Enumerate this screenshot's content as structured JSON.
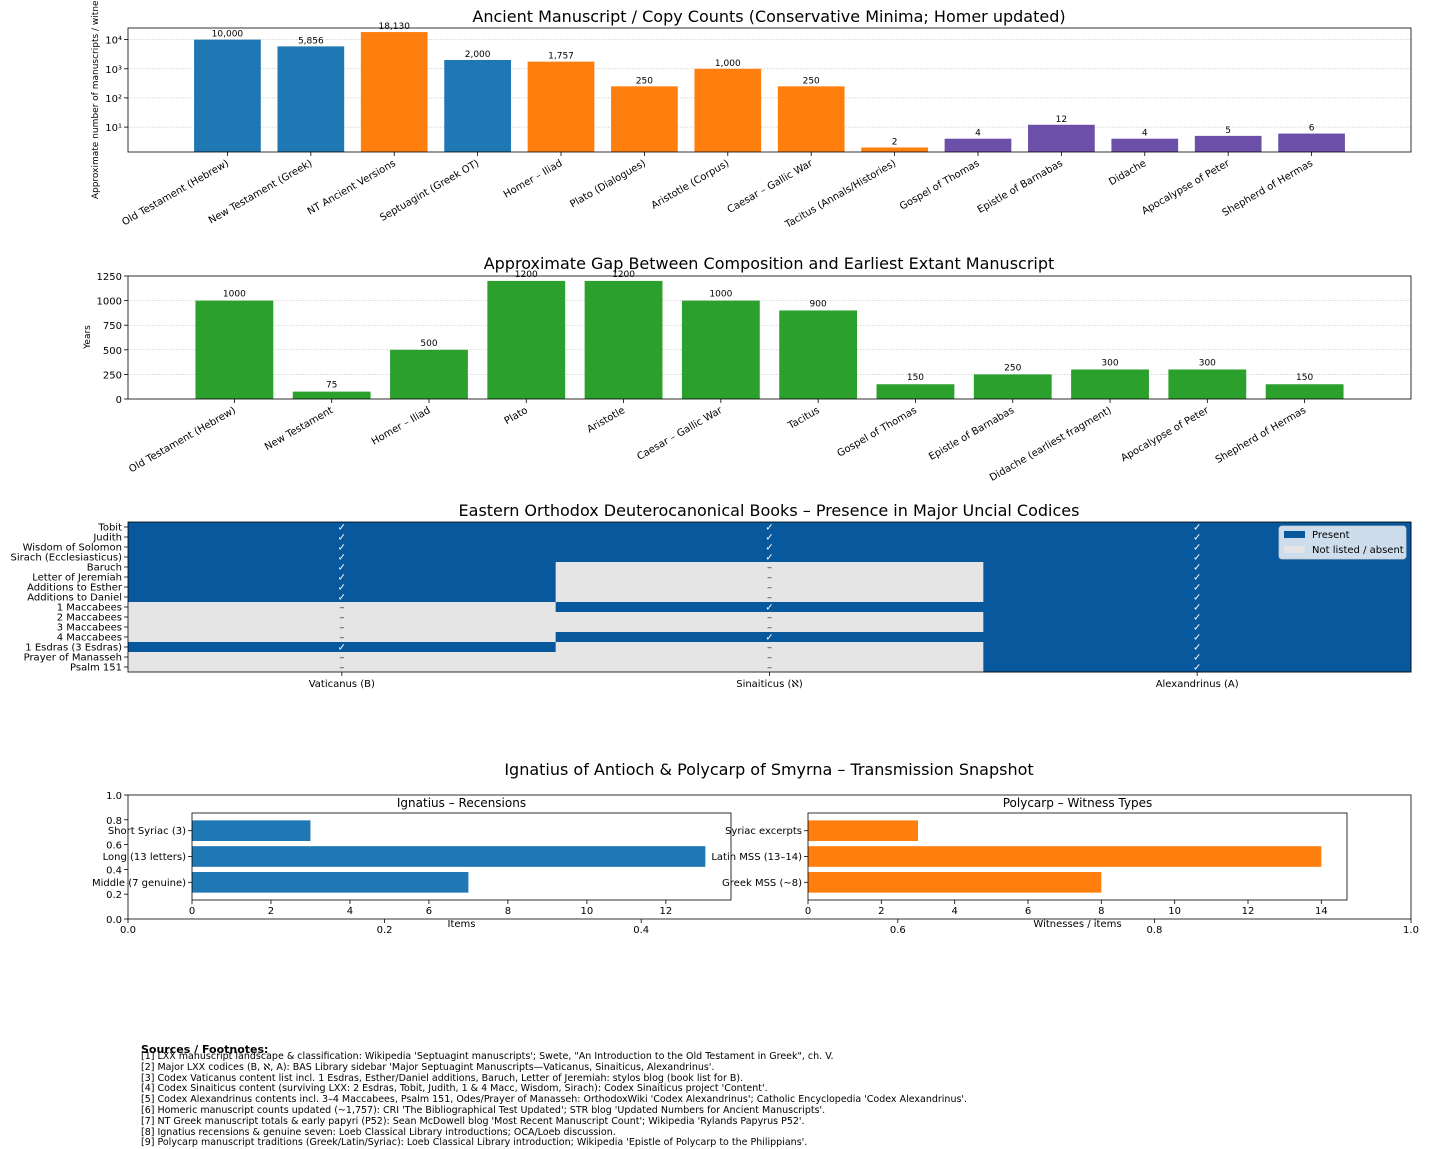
{
  "chart_data": [
    {
      "type": "bar",
      "title": "Ancient Manuscript / Copy Counts (Conservative Minima; Homer updated)",
      "ylabel": "Approximate number of manuscripts / witnesses",
      "yscale": "log",
      "ylim": [
        1.4,
        25000
      ],
      "yticks": [
        {
          "value": 10,
          "label": "10¹"
        },
        {
          "value": 100,
          "label": "10²"
        },
        {
          "value": 1000,
          "label": "10³"
        },
        {
          "value": 10000,
          "label": "10⁴"
        }
      ],
      "grid": true,
      "categories": [
        "Old Testament (Hebrew)",
        "New Testament (Greek)",
        "NT Ancient Versions",
        "Septuagint (Greek OT)",
        "Homer – Iliad",
        "Plato (Dialogues)",
        "Aristotle (Corpus)",
        "Caesar – Gallic War",
        "Tacitus (Annals/Histories)",
        "Gospel of Thomas",
        "Epistle of Barnabas",
        "Didache",
        "Apocalypse of Peter",
        "Shepherd of Hermas"
      ],
      "values": [
        10000,
        5856,
        18130,
        2000,
        1757,
        250,
        1000,
        250,
        2,
        4,
        12,
        4,
        5,
        6
      ],
      "value_labels": [
        "10,000",
        "5,856",
        "18,130",
        "2,000",
        "1,757",
        "250",
        "1,000",
        "250",
        "2",
        "4",
        "12",
        "4",
        "5",
        "6"
      ],
      "colors": [
        "#1f77b4",
        "#1f77b4",
        "#ff7f0e",
        "#1f77b4",
        "#ff7f0e",
        "#ff7f0e",
        "#ff7f0e",
        "#ff7f0e",
        "#ff7f0e",
        "#6b4fa8",
        "#6b4fa8",
        "#6b4fa8",
        "#6b4fa8",
        "#6b4fa8"
      ]
    },
    {
      "type": "bar",
      "title": "Approximate Gap Between Composition and Earliest Extant Manuscript",
      "ylabel": "Years",
      "ylim": [
        0,
        1250
      ],
      "yticks": [
        0,
        250,
        500,
        750,
        1000,
        1250
      ],
      "grid": true,
      "categories": [
        "Old Testament (Hebrew)",
        "New Testament",
        "Homer – Iliad",
        "Plato",
        "Aristotle",
        "Caesar – Gallic War",
        "Tacitus",
        "Gospel of Thomas",
        "Epistle of Barnabas",
        "Didache (earliest fragment)",
        "Apocalypse of Peter",
        "Shepherd of Hermas"
      ],
      "values": [
        1000,
        75,
        500,
        1200,
        1200,
        1000,
        900,
        150,
        250,
        300,
        300,
        150
      ],
      "color": "#2ca02c"
    },
    {
      "type": "heatmap",
      "title": "Eastern Orthodox Deuterocanonical Books – Presence in Major Uncial Codices",
      "rows": [
        "Tobit",
        "Judith",
        "Wisdom of Solomon",
        "Sirach (Ecclesiasticus)",
        "Baruch",
        "Letter of Jeremiah",
        "Additions to Esther",
        "Additions to Daniel",
        "1 Maccabees",
        "2 Maccabees",
        "3 Maccabees",
        "4 Maccabees",
        "1 Esdras (3 Esdras)",
        "Prayer of Manasseh",
        "Psalm 151"
      ],
      "columns": [
        "Vaticanus (B)",
        "Sinaiticus (ℵ)",
        "Alexandrinus (A)"
      ],
      "matrix": [
        [
          1,
          1,
          1
        ],
        [
          1,
          1,
          1
        ],
        [
          1,
          1,
          1
        ],
        [
          1,
          1,
          1
        ],
        [
          1,
          0,
          1
        ],
        [
          1,
          0,
          1
        ],
        [
          1,
          0,
          1
        ],
        [
          1,
          0,
          1
        ],
        [
          0,
          1,
          1
        ],
        [
          0,
          0,
          1
        ],
        [
          0,
          0,
          1
        ],
        [
          0,
          1,
          1
        ],
        [
          1,
          0,
          1
        ],
        [
          0,
          0,
          1
        ],
        [
          0,
          0,
          1
        ]
      ],
      "present_mark": "✓",
      "absent_mark": "–",
      "colors": {
        "present": "#08589e",
        "absent": "#e5e5e5"
      },
      "legend": {
        "position": "top-right",
        "entries": [
          "Present",
          "Not listed / absent"
        ]
      }
    },
    {
      "type": "bar",
      "orientation": "horizontal",
      "suptitle": "Ignatius of Antioch & Polycarp of Smyrna – Transmission Snapshot",
      "outer_xticks": [
        "0.0",
        "0.2",
        "0.4",
        "0.6",
        "0.8",
        "1.0"
      ],
      "outer_yticks": [
        "0.0",
        "0.2",
        "0.4",
        "0.6",
        "0.8",
        "1.0"
      ],
      "panels": [
        {
          "title": "Ignatius – Recensions",
          "categories": [
            "Middle (7 genuine)",
            "Long (13 letters)",
            "Short Syriac (3)"
          ],
          "values": [
            7,
            13,
            3
          ],
          "xlabel": "Items",
          "xlim": [
            0,
            13.65
          ],
          "xticks": [
            0,
            2,
            4,
            6,
            8,
            10,
            12
          ],
          "color": "#1f77b4"
        },
        {
          "title": "Polycarp – Witness Types",
          "categories": [
            "Greek MSS (~8)",
            "Latin MSS (13–14)",
            "Syriac excerpts"
          ],
          "values": [
            8,
            14,
            3
          ],
          "xlabel": "Witnesses / items",
          "xlim": [
            0,
            14.7
          ],
          "xticks": [
            0,
            2,
            4,
            6,
            8,
            10,
            12,
            14
          ],
          "color": "#ff7f0e"
        }
      ]
    }
  ],
  "footnotes": {
    "heading": "Sources / Footnotes:",
    "items": [
      "[1] LXX manuscript landscape & classification: Wikipedia 'Septuagint manuscripts'; Swete, \"An Introduction to the Old Testament in Greek\", ch. V.",
      "[2] Major LXX codices (B, ℵ, A): BAS Library sidebar 'Major Septuagint Manuscripts—Vaticanus, Sinaiticus, Alexandrinus'.",
      "[3] Codex Vaticanus content list incl. 1 Esdras, Esther/Daniel additions, Baruch, Letter of Jeremiah: stylos blog (book list for B).",
      "[4] Codex Sinaiticus content (surviving LXX: 2 Esdras, Tobit, Judith, 1 & 4 Macc, Wisdom, Sirach): Codex Sinaiticus project 'Content'.",
      "[5] Codex Alexandrinus contents incl. 3–4 Maccabees, Psalm 151, Odes/Prayer of Manasseh: OrthodoxWiki 'Codex Alexandrinus'; Catholic Encyclopedia 'Codex Alexandrinus'.",
      "[6] Homeric manuscript counts updated (~1,757): CRI 'The Bibliographical Test Updated'; STR blog 'Updated Numbers for Ancient Manuscripts'.",
      "[7] NT Greek manuscript totals & early papyri (P52): Sean McDowell blog 'Most Recent Manuscript Count'; Wikipedia 'Rylands Papyrus P52'.",
      "[8] Ignatius recensions & genuine seven: Loeb Classical Library introductions; OCA/Loeb discussion.",
      "[9] Polycarp manuscript traditions (Greek/Latin/Syriac): Loeb Classical Library introduction; Wikipedia 'Epistle of Polycarp to the Philippians'."
    ]
  }
}
